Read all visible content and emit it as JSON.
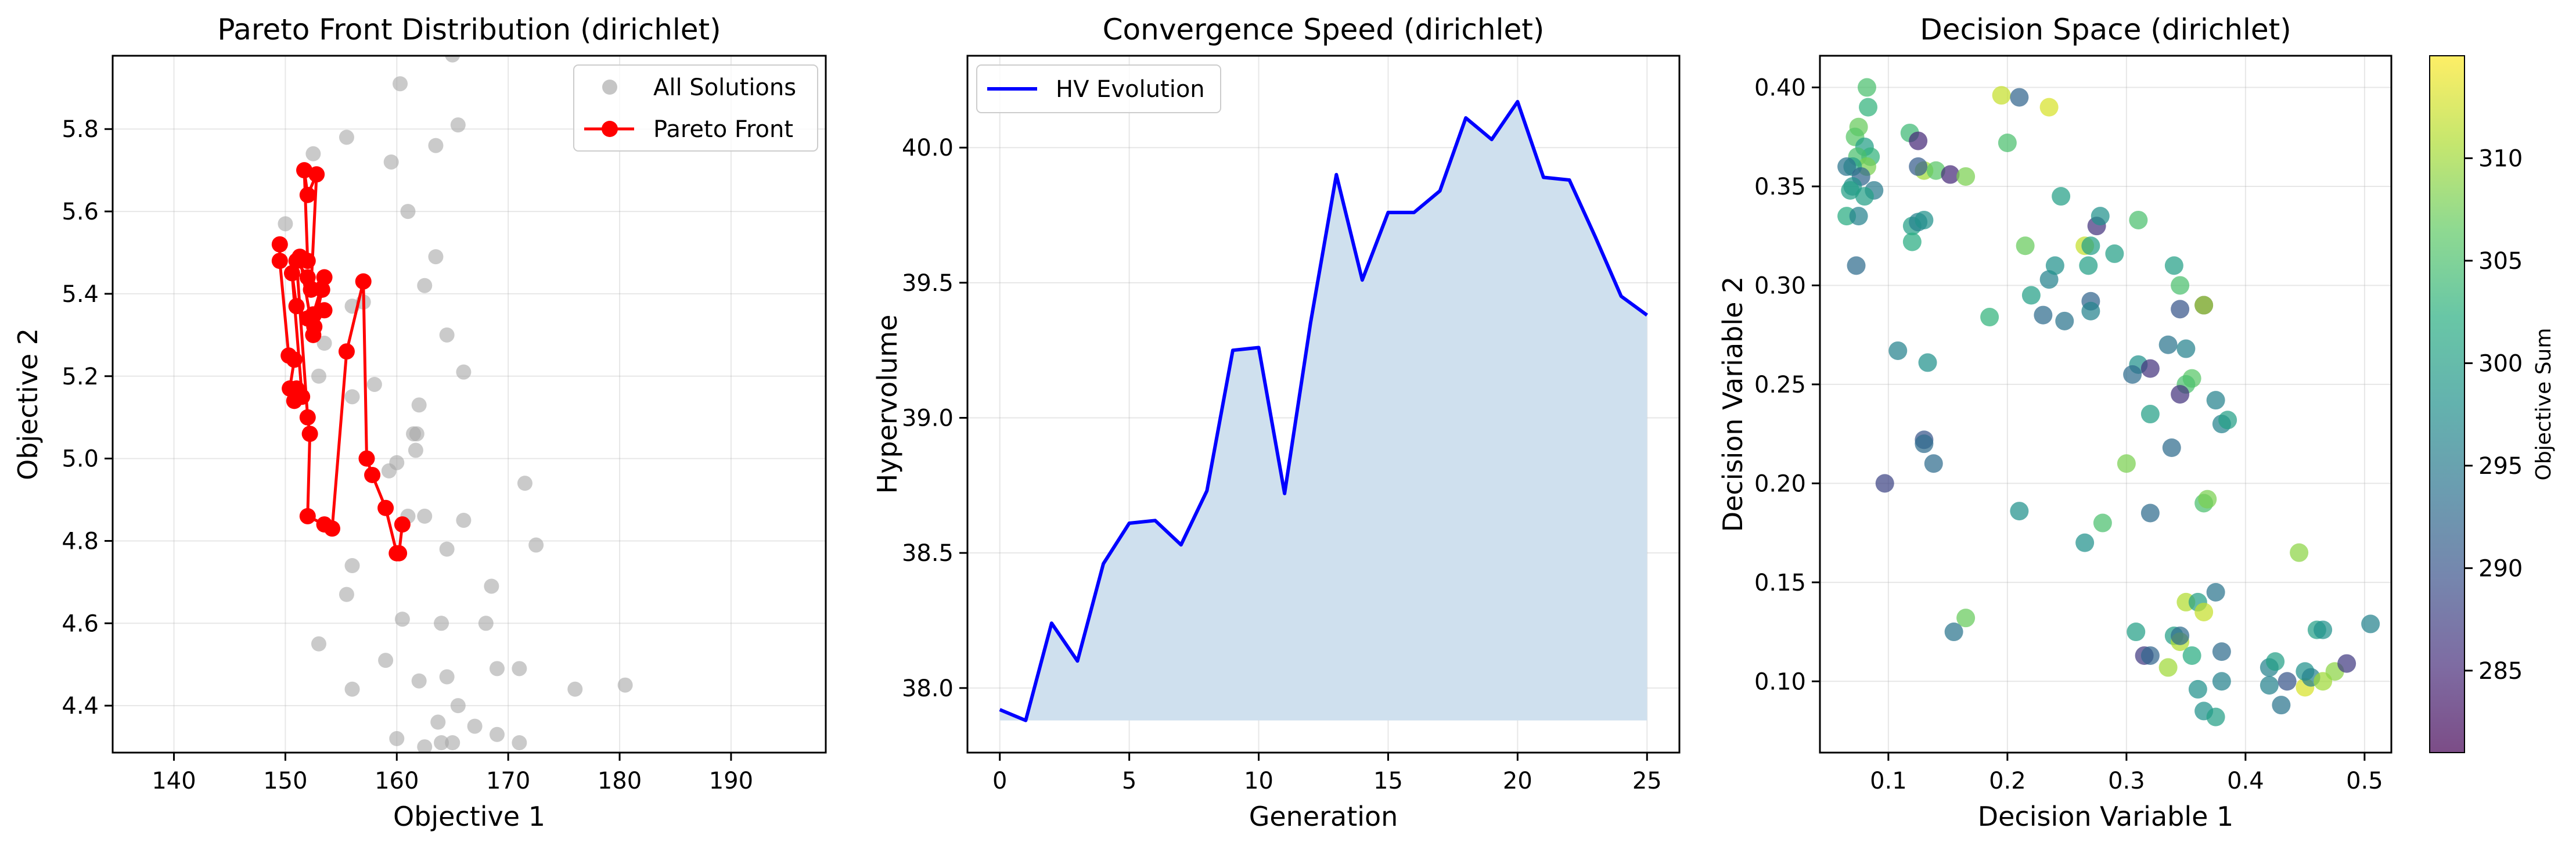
{
  "chart_data": [
    {
      "type": "scatter",
      "title": "Pareto Front Distribution (dirichlet)",
      "xlabel": "Objective 1",
      "ylabel": "Objective 2",
      "xlim": [
        134.5,
        198.5
      ],
      "ylim": [
        4.286,
        5.978
      ],
      "xticks": [
        140,
        150,
        160,
        170,
        180,
        190
      ],
      "yticks": [
        4.4,
        4.6,
        4.8,
        5.0,
        5.2,
        5.4,
        5.6,
        5.8
      ],
      "grid": true,
      "legend": "top-right",
      "series": [
        {
          "name": "All Solutions",
          "style": "points",
          "color": "#a6a6a6",
          "points": [
            [
              165,
              5.98
            ],
            [
              160.3,
              5.91
            ],
            [
              165.5,
              5.81
            ],
            [
              155.5,
              5.78
            ],
            [
              163.5,
              5.76
            ],
            [
              152.5,
              5.74
            ],
            [
              159.5,
              5.72
            ],
            [
              161,
              5.6
            ],
            [
              163.5,
              5.49
            ],
            [
              150,
              5.57
            ],
            [
              162.5,
              5.42
            ],
            [
              164.5,
              5.3
            ],
            [
              156,
              5.37
            ],
            [
              157,
              5.38
            ],
            [
              166,
              5.21
            ],
            [
              153.5,
              5.28
            ],
            [
              158,
              5.18
            ],
            [
              156,
              5.15
            ],
            [
              162,
              5.13
            ],
            [
              153,
              5.2
            ],
            [
              161.5,
              5.06
            ],
            [
              161.8,
              5.06
            ],
            [
              160,
              4.99
            ],
            [
              161.7,
              5.02
            ],
            [
              159.3,
              4.97
            ],
            [
              171.5,
              4.94
            ],
            [
              161,
              4.86
            ],
            [
              162.5,
              4.86
            ],
            [
              166,
              4.85
            ],
            [
              164.5,
              4.78
            ],
            [
              172.5,
              4.79
            ],
            [
              156,
              4.74
            ],
            [
              168.5,
              4.69
            ],
            [
              155.5,
              4.67
            ],
            [
              160.5,
              4.61
            ],
            [
              164,
              4.6
            ],
            [
              168,
              4.6
            ],
            [
              153,
              4.55
            ],
            [
              159,
              4.51
            ],
            [
              162,
              4.46
            ],
            [
              164.5,
              4.47
            ],
            [
              169,
              4.49
            ],
            [
              171,
              4.49
            ],
            [
              156,
              4.44
            ],
            [
              176,
              4.44
            ],
            [
              180.5,
              4.45
            ],
            [
              165.5,
              4.4
            ],
            [
              167,
              4.35
            ],
            [
              163.7,
              4.36
            ],
            [
              160,
              4.32
            ],
            [
              162.5,
              4.3
            ],
            [
              164,
              4.31
            ],
            [
              169,
              4.33
            ],
            [
              171,
              4.31
            ],
            [
              165,
              4.31
            ]
          ]
        },
        {
          "name": "Pareto Front",
          "style": "line+points",
          "color": "#ff0000",
          "points": [
            [
              149.5,
              5.52
            ],
            [
              149.5,
              5.48
            ],
            [
              150.3,
              5.25
            ],
            [
              150.8,
              5.24
            ],
            [
              150.4,
              5.17
            ],
            [
              151,
              5.17
            ],
            [
              150.8,
              5.14
            ],
            [
              151.5,
              5.15
            ],
            [
              150.6,
              5.45
            ],
            [
              151,
              5.37
            ],
            [
              152,
              5.34
            ],
            [
              152.5,
              5.3
            ],
            [
              151.3,
              5.49
            ],
            [
              152,
              5.48
            ],
            [
              151.7,
              5.7
            ],
            [
              152,
              5.64
            ],
            [
              152.8,
              5.69
            ],
            [
              152.3,
              5.41
            ],
            [
              153.5,
              5.44
            ],
            [
              152.5,
              5.35
            ],
            [
              153.5,
              5.36
            ],
            [
              152.6,
              5.32
            ],
            [
              153.3,
              5.41
            ],
            [
              152,
              5.44
            ],
            [
              151,
              5.48
            ],
            [
              152,
              5.1
            ],
            [
              152.2,
              5.06
            ],
            [
              152,
              4.86
            ],
            [
              153.5,
              4.84
            ],
            [
              154.2,
              4.83
            ],
            [
              155.5,
              5.26
            ],
            [
              157,
              5.43
            ],
            [
              157.3,
              5.0
            ],
            [
              157.8,
              4.96
            ],
            [
              159,
              4.88
            ],
            [
              160,
              4.77
            ],
            [
              160.2,
              4.77
            ],
            [
              160.5,
              4.84
            ]
          ]
        }
      ]
    },
    {
      "type": "area",
      "title": "Convergence Speed (dirichlet)",
      "xlabel": "Generation",
      "ylabel": "Hypervolume",
      "xlim": [
        -1.25,
        26.25
      ],
      "ylim": [
        37.761,
        40.34
      ],
      "xticks": [
        0,
        5,
        10,
        15,
        20,
        25
      ],
      "yticks": [
        38.0,
        38.5,
        39.0,
        39.5,
        40.0
      ],
      "grid": true,
      "legend": "top-left",
      "fill_color": "#cfe0ee",
      "series": [
        {
          "name": "HV Evolution",
          "color": "#0000ff",
          "x": [
            0,
            1,
            2,
            3,
            4,
            5,
            6,
            7,
            8,
            9,
            10,
            11,
            12,
            13,
            14,
            15,
            16,
            17,
            18,
            19,
            20,
            21,
            22,
            23,
            24,
            25
          ],
          "values": [
            37.92,
            37.88,
            38.24,
            38.1,
            38.46,
            38.61,
            38.62,
            38.53,
            38.73,
            39.25,
            39.26,
            38.72,
            39.35,
            39.9,
            39.51,
            39.76,
            39.76,
            39.84,
            40.11,
            40.03,
            40.17,
            39.89,
            39.88,
            39.67,
            39.45,
            39.38
          ]
        }
      ]
    },
    {
      "type": "scatter",
      "title": "Decision Space (dirichlet)",
      "xlabel": "Decision Variable 1",
      "ylabel": "Decision Variable 2",
      "xlim": [
        0.0425,
        0.5225
      ],
      "ylim": [
        0.064,
        0.416
      ],
      "xticks": [
        0.1,
        0.2,
        0.3,
        0.4,
        0.5
      ],
      "yticks": [
        0.1,
        0.15,
        0.2,
        0.25,
        0.3,
        0.35,
        0.4
      ],
      "grid": true,
      "colorbar": {
        "label": "Objective Sum",
        "range": [
          281,
          315
        ],
        "ticks": [
          285,
          290,
          295,
          300,
          305,
          310
        ]
      },
      "points": [
        [
          0.082,
          0.4,
          305
        ],
        [
          0.083,
          0.39,
          303
        ],
        [
          0.075,
          0.38,
          307
        ],
        [
          0.072,
          0.375,
          306
        ],
        [
          0.08,
          0.37,
          300
        ],
        [
          0.085,
          0.365,
          303
        ],
        [
          0.074,
          0.365,
          305
        ],
        [
          0.082,
          0.36,
          308
        ],
        [
          0.07,
          0.36,
          300
        ],
        [
          0.065,
          0.36,
          294
        ],
        [
          0.077,
          0.355,
          292
        ],
        [
          0.07,
          0.35,
          298
        ],
        [
          0.068,
          0.348,
          300
        ],
        [
          0.088,
          0.348,
          295
        ],
        [
          0.065,
          0.335,
          302
        ],
        [
          0.075,
          0.335,
          296
        ],
        [
          0.073,
          0.31,
          293
        ],
        [
          0.08,
          0.345,
          300
        ],
        [
          0.118,
          0.377,
          304
        ],
        [
          0.125,
          0.373,
          285
        ],
        [
          0.13,
          0.358,
          310
        ],
        [
          0.125,
          0.36,
          291
        ],
        [
          0.14,
          0.358,
          306
        ],
        [
          0.152,
          0.356,
          285
        ],
        [
          0.165,
          0.355,
          308
        ],
        [
          0.12,
          0.33,
          300
        ],
        [
          0.125,
          0.332,
          296
        ],
        [
          0.13,
          0.333,
          298
        ],
        [
          0.12,
          0.322,
          302
        ],
        [
          0.108,
          0.267,
          296
        ],
        [
          0.133,
          0.261,
          298
        ],
        [
          0.13,
          0.222,
          290
        ],
        [
          0.13,
          0.22,
          293
        ],
        [
          0.138,
          0.21,
          293
        ],
        [
          0.097,
          0.2,
          288
        ],
        [
          0.195,
          0.396,
          312
        ],
        [
          0.21,
          0.395,
          292
        ],
        [
          0.235,
          0.39,
          313
        ],
        [
          0.2,
          0.372,
          305
        ],
        [
          0.245,
          0.345,
          300
        ],
        [
          0.215,
          0.32,
          307
        ],
        [
          0.235,
          0.303,
          296
        ],
        [
          0.24,
          0.31,
          298
        ],
        [
          0.265,
          0.32,
          312
        ],
        [
          0.27,
          0.32,
          300
        ],
        [
          0.275,
          0.33,
          286
        ],
        [
          0.278,
          0.335,
          298
        ],
        [
          0.268,
          0.31,
          300
        ],
        [
          0.29,
          0.316,
          300
        ],
        [
          0.31,
          0.333,
          305
        ],
        [
          0.22,
          0.295,
          300
        ],
        [
          0.23,
          0.285,
          293
        ],
        [
          0.248,
          0.282,
          294
        ],
        [
          0.27,
          0.292,
          292
        ],
        [
          0.27,
          0.287,
          296
        ],
        [
          0.185,
          0.284,
          303
        ],
        [
          0.34,
          0.31,
          300
        ],
        [
          0.345,
          0.3,
          305
        ],
        [
          0.345,
          0.288,
          290
        ],
        [
          0.365,
          0.29,
          285
        ],
        [
          0.365,
          0.29,
          310
        ],
        [
          0.335,
          0.27,
          294
        ],
        [
          0.35,
          0.268,
          296
        ],
        [
          0.31,
          0.26,
          298
        ],
        [
          0.32,
          0.258,
          286
        ],
        [
          0.305,
          0.255,
          293
        ],
        [
          0.355,
          0.253,
          306
        ],
        [
          0.35,
          0.25,
          305
        ],
        [
          0.345,
          0.245,
          286
        ],
        [
          0.375,
          0.242,
          296
        ],
        [
          0.38,
          0.23,
          296
        ],
        [
          0.385,
          0.232,
          300
        ],
        [
          0.32,
          0.235,
          300
        ],
        [
          0.338,
          0.218,
          293
        ],
        [
          0.3,
          0.21,
          308
        ],
        [
          0.365,
          0.19,
          305
        ],
        [
          0.368,
          0.192,
          308
        ],
        [
          0.21,
          0.186,
          298
        ],
        [
          0.28,
          0.18,
          305
        ],
        [
          0.32,
          0.185,
          293
        ],
        [
          0.265,
          0.17,
          298
        ],
        [
          0.375,
          0.145,
          294
        ],
        [
          0.35,
          0.14,
          311
        ],
        [
          0.36,
          0.14,
          300
        ],
        [
          0.365,
          0.135,
          312
        ],
        [
          0.445,
          0.165,
          309
        ],
        [
          0.165,
          0.132,
          307
        ],
        [
          0.155,
          0.125,
          294
        ],
        [
          0.308,
          0.125,
          300
        ],
        [
          0.34,
          0.123,
          300
        ],
        [
          0.345,
          0.12,
          311
        ],
        [
          0.345,
          0.123,
          293
        ],
        [
          0.315,
          0.113,
          287
        ],
        [
          0.32,
          0.113,
          292
        ],
        [
          0.335,
          0.107,
          310
        ],
        [
          0.355,
          0.113,
          302
        ],
        [
          0.38,
          0.115,
          293
        ],
        [
          0.36,
          0.096,
          298
        ],
        [
          0.365,
          0.085,
          298
        ],
        [
          0.375,
          0.082,
          300
        ],
        [
          0.38,
          0.1,
          296
        ],
        [
          0.42,
          0.107,
          296
        ],
        [
          0.425,
          0.11,
          300
        ],
        [
          0.42,
          0.098,
          296
        ],
        [
          0.43,
          0.088,
          294
        ],
        [
          0.435,
          0.1,
          290
        ],
        [
          0.45,
          0.097,
          313
        ],
        [
          0.45,
          0.105,
          298
        ],
        [
          0.455,
          0.102,
          296
        ],
        [
          0.46,
          0.126,
          300
        ],
        [
          0.465,
          0.126,
          298
        ],
        [
          0.465,
          0.1,
          310
        ],
        [
          0.475,
          0.105,
          309
        ],
        [
          0.485,
          0.109,
          287
        ],
        [
          0.505,
          0.129,
          296
        ]
      ]
    }
  ]
}
